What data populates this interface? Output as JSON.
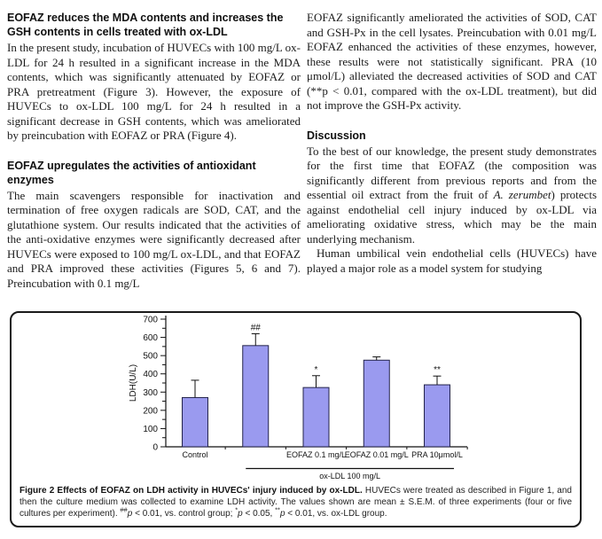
{
  "article": {
    "left_column": {
      "section1_heading": "EOFAZ reduces the MDA contents and increases the GSH contents in cells treated with ox-LDL",
      "section1_body": "In the present study, incubation of HUVECs with 100 mg/L ox-LDL for 24 h resulted in a significant increase in the MDA contents, which was significantly attenuated by EOFAZ or PRA pretreatment (Figure 3). However, the exposure of HUVECs to ox-LDL 100 mg/L for 24 h resulted in a significant decrease in GSH contents, which was ameliorated by preincubation with EOFAZ or PRA (Figure 4).",
      "section2_heading": "EOFAZ upregulates the activities of antioxidant enzymes",
      "section2_body": "The main scavengers responsible for inactivation and termination of free oxygen radicals are SOD, CAT, and the glutathione system. Our results indicated that the activities of the anti-oxidative enzymes were significantly decreased after HUVECs were exposed to 100 mg/L ox-LDL, and that EOFAZ and PRA improved these activities (Figures 5, 6 and 7). Preincubation with 0.1 mg/L"
    },
    "right_column": {
      "para1": "EOFAZ significantly ameliorated the activities of SOD, CAT and GSH-Px in the cell lysates. Preincubation with 0.01 mg/L EOFAZ enhanced the activities of these enzymes, however, these results were not statistically significant. PRA (10 μmol/L) alleviated the decreased activities of SOD and CAT (**p < 0.01, compared with the ox-LDL treatment), but did not improve the GSH-Px activity.",
      "discussion_heading": "Discussion",
      "discussion_para_segments": [
        [
          "To the best of our knowledge, the present study demonstrates for the first time that EOFAZ (the composition was significantly different from previous reports and from the essential oil extract from the fruit of ",
          ""
        ],
        [
          "A. zerumbet",
          "i"
        ],
        [
          ") protects against endothelial cell injury induced by ox-LDL via ameliorating oxidative stress, which may be the main underlying mechanism.",
          ""
        ]
      ],
      "para3": "Human umbilical vein endothelial cells (HUVECs) have played a major role as a model system for studying"
    }
  },
  "figure": {
    "caption_segments": [
      [
        "Figure 2 Effects of EOFAZ on LDH activity in HUVECs' injury induced by ox-LDL.",
        "b"
      ],
      [
        " HUVECs were treated as described in Figure 1, and then the culture medium was collected to examine LDH activity. The values shown are mean ± S.E.M. of three experiments (four or five cultures per experiment). ",
        ""
      ],
      [
        "##",
        "sup"
      ],
      [
        "p",
        "i"
      ],
      [
        " < 0.01, vs. control group; ",
        ""
      ],
      [
        "*",
        "sup"
      ],
      [
        "p",
        "i"
      ],
      [
        " < 0.05, ",
        ""
      ],
      [
        "**",
        "sup"
      ],
      [
        "p",
        "i"
      ],
      [
        " < 0.01, vs. ox-LDL group.",
        ""
      ]
    ]
  },
  "chart_data": {
    "type": "bar",
    "title": "",
    "xlabel": "",
    "ylabel": "LDH(U/L)",
    "ylim": [
      0,
      700
    ],
    "ytick_step": 100,
    "ytick_minor_step": 50,
    "grid": false,
    "legend": null,
    "categories": [
      "Control",
      "ox-LDL",
      "EOFAZ 0.1 mg/L",
      "EOFAZ 0.01 mg/L",
      "PRA 10μmol/L"
    ],
    "x_axis_labels": [
      "Control",
      "",
      "EOFAZ 0.1 mg/L",
      "EOFAZ 0.01 mg/L",
      "PRA 10μmol/L"
    ],
    "values": [
      270,
      555,
      325,
      475,
      340
    ],
    "errors": [
      95,
      65,
      65,
      18,
      48
    ],
    "annotations": [
      "",
      "##",
      "*",
      "",
      "**"
    ],
    "bracket": {
      "label": "ox-LDL 100 mg/L",
      "start_category": 1,
      "end_category": 4
    },
    "bar_fill": "#9a9aef",
    "bar_stroke": "#23234a",
    "axis_color": "#111111"
  }
}
